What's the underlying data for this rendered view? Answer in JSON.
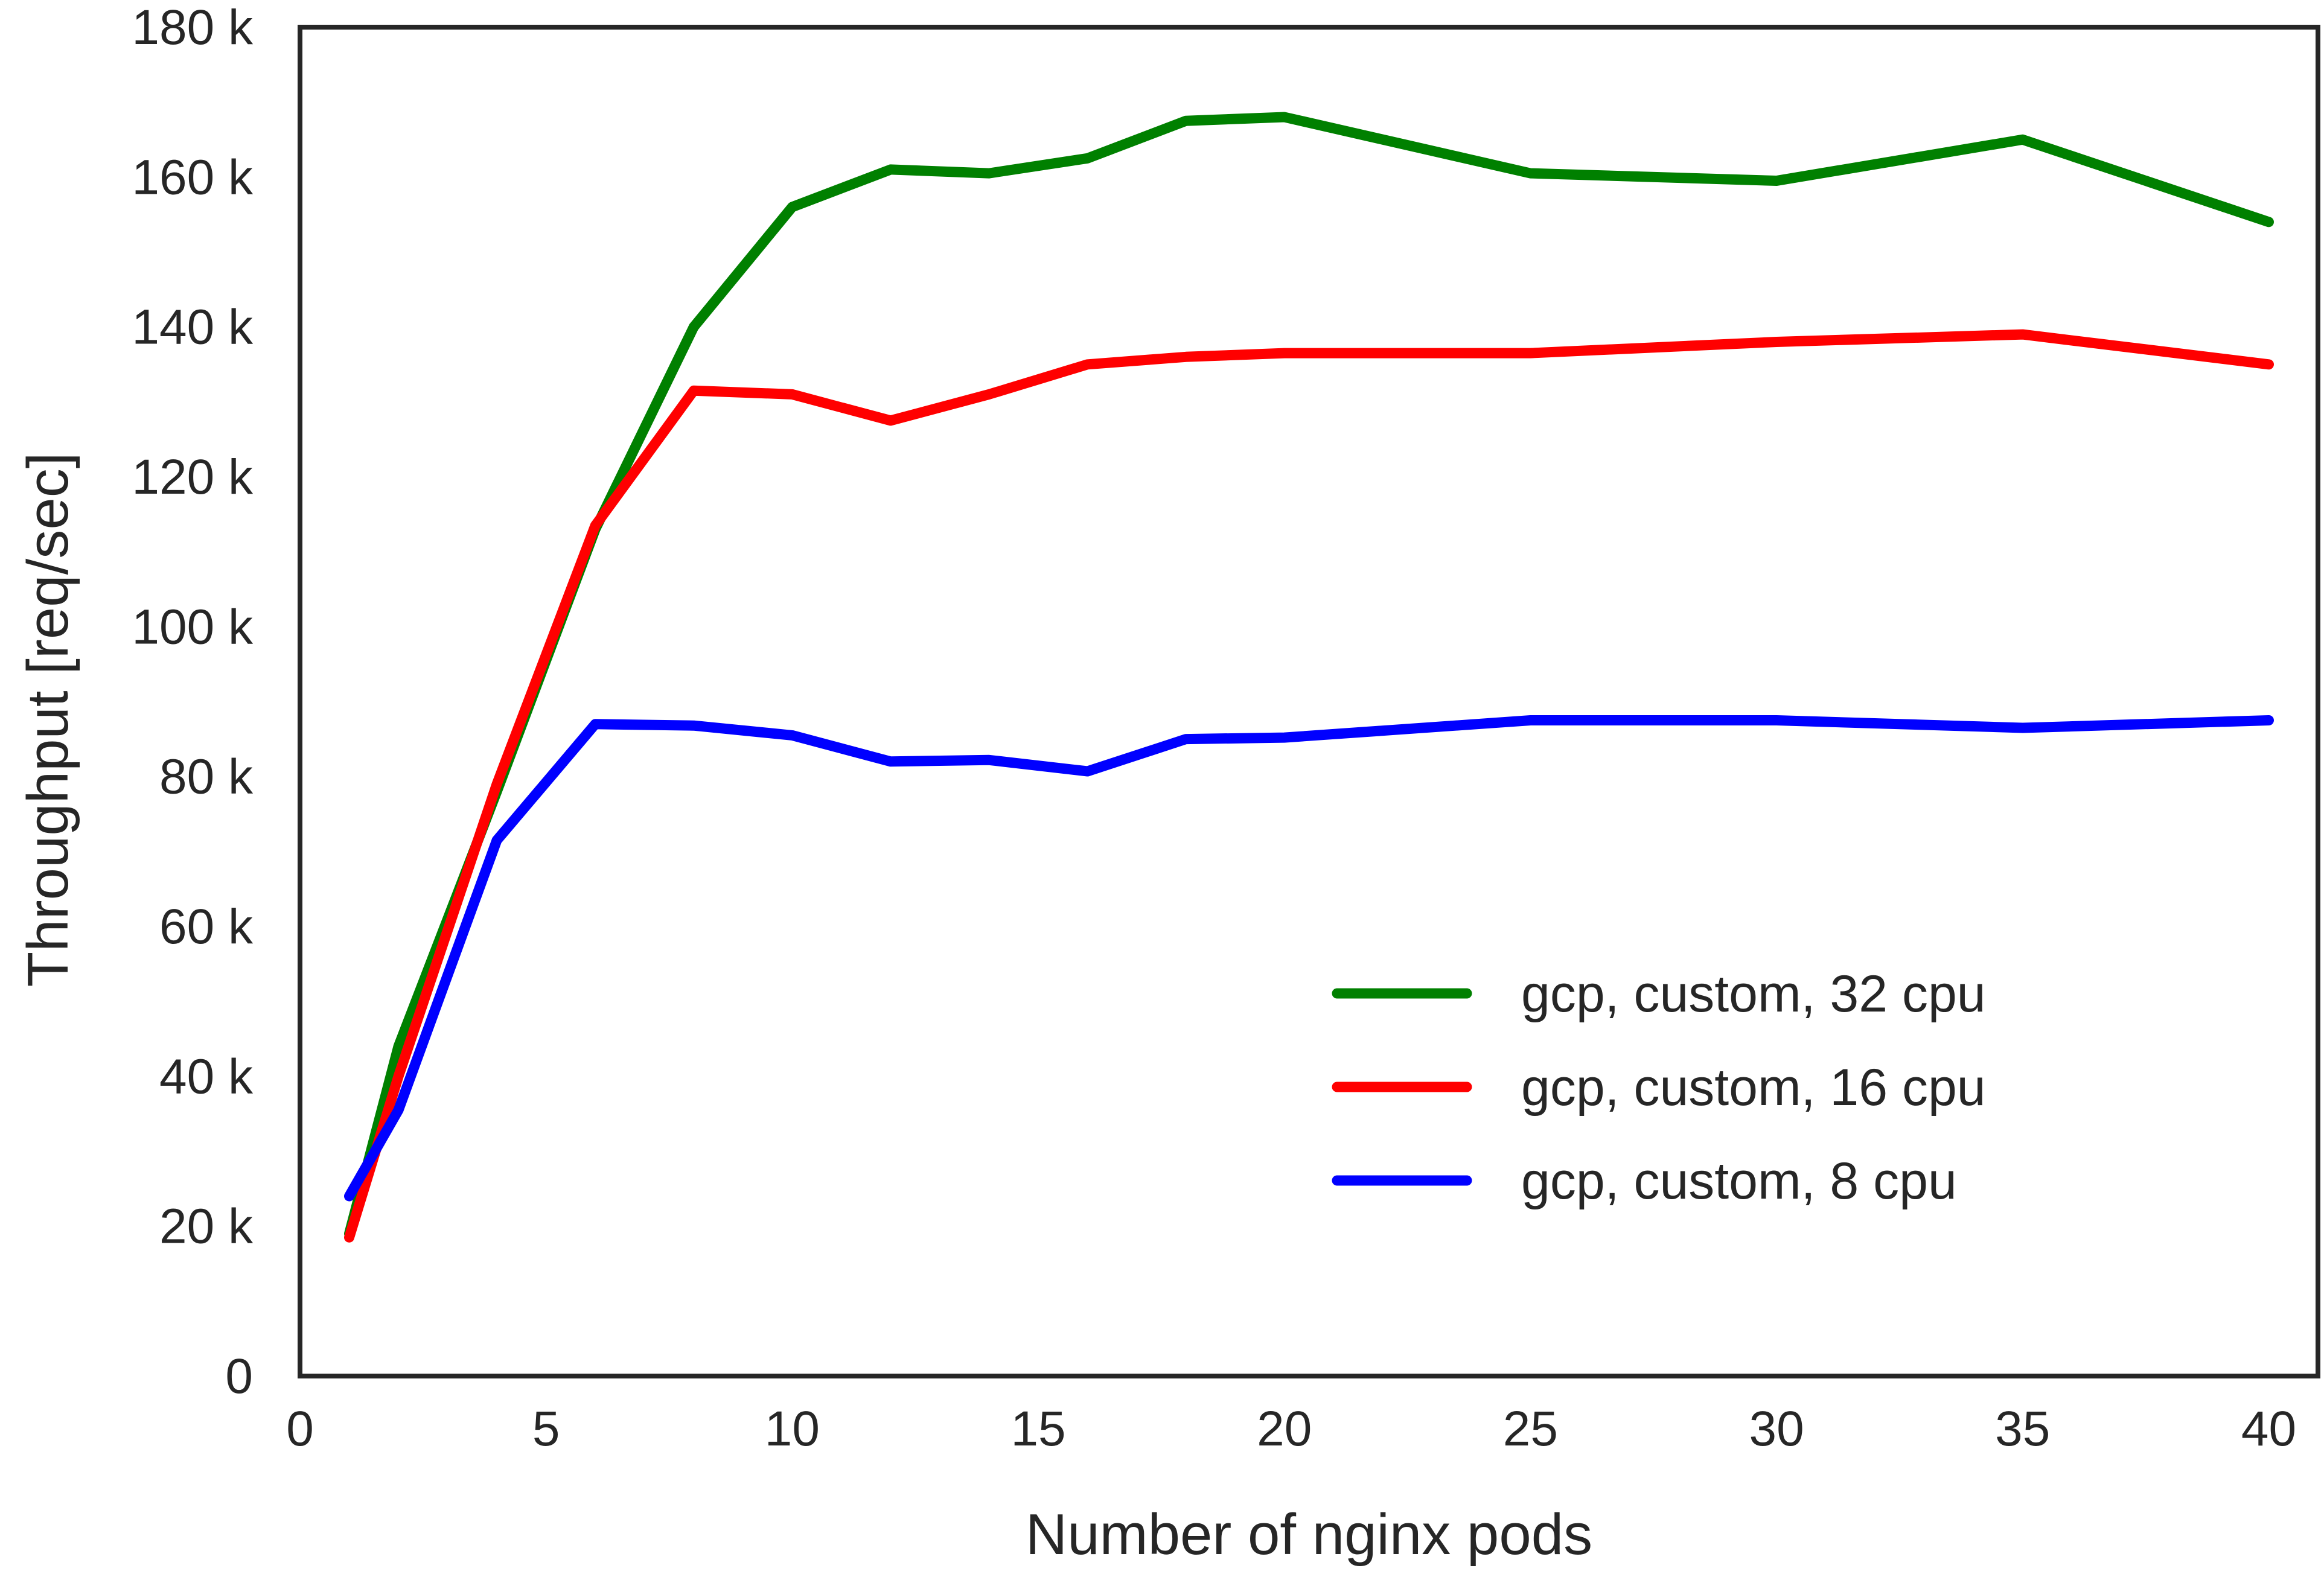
{
  "chart_data": {
    "type": "line",
    "title": "",
    "xlabel": "Number of nginx pods",
    "ylabel": "Throughput [req/sec]",
    "xlim": [
      0,
      41
    ],
    "ylim": [
      0,
      180000
    ],
    "xticks": [
      0,
      5,
      10,
      15,
      20,
      25,
      30,
      35,
      40
    ],
    "xtick_labels": [
      "0",
      "5",
      "10",
      "15",
      "20",
      "25",
      "30",
      "35",
      "40"
    ],
    "yticks": [
      0,
      20000,
      40000,
      60000,
      80000,
      100000,
      120000,
      140000,
      160000,
      180000
    ],
    "ytick_labels": [
      "0",
      "20 k",
      "40 k",
      "60 k",
      "80 k",
      "100 k",
      "120 k",
      "140 k",
      "160 k",
      "180 k"
    ],
    "grid": false,
    "legend_position": "lower-right",
    "series": [
      {
        "name": "gcp, custom, 32 cpu",
        "color": "#008000",
        "x": [
          1,
          2,
          4,
          6,
          8,
          10,
          12,
          14,
          16,
          18,
          20,
          25,
          30,
          35,
          40
        ],
        "y": [
          19000,
          44000,
          78000,
          113000,
          140000,
          156000,
          161000,
          160500,
          162500,
          167500,
          168000,
          160500,
          159500,
          165000,
          154000
        ]
      },
      {
        "name": "gcp, custom, 16 cpu",
        "color": "#ff0000",
        "x": [
          1,
          2,
          4,
          6,
          8,
          10,
          12,
          14,
          16,
          18,
          20,
          25,
          30,
          35,
          40
        ],
        "y": [
          18500,
          40000,
          79000,
          113500,
          131500,
          131000,
          127500,
          131000,
          135000,
          136000,
          136500,
          136500,
          138000,
          139000,
          135000
        ]
      },
      {
        "name": "gcp, custom, 8 cpu",
        "color": "#0000ff",
        "x": [
          1,
          2,
          4,
          6,
          8,
          10,
          12,
          14,
          16,
          18,
          20,
          25,
          30,
          35,
          40
        ],
        "y": [
          24000,
          35500,
          71500,
          87000,
          86800,
          85500,
          82000,
          82200,
          80700,
          85000,
          85200,
          87500,
          87500,
          86500,
          87500
        ]
      }
    ]
  }
}
